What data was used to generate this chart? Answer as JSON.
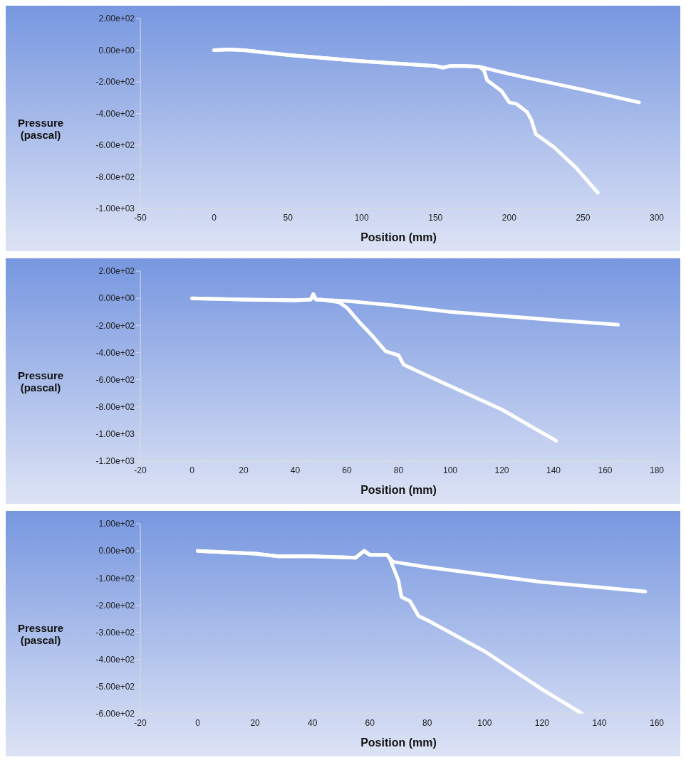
{
  "chart_data": [
    {
      "type": "line",
      "xlabel": "Position (mm)",
      "ylabel": "Pressure (pascal)",
      "xlim": [
        -50,
        300
      ],
      "xticks": [
        -50,
        0,
        50,
        100,
        150,
        200,
        250,
        300
      ],
      "ylim": [
        -1000,
        200
      ],
      "yticks": [
        {
          "value": 200,
          "label": "2.00e+02"
        },
        {
          "value": 0,
          "label": "0.00e+00"
        },
        {
          "value": -200,
          "label": "-2.00e+02"
        },
        {
          "value": -400,
          "label": "-4.00e+02"
        },
        {
          "value": -600,
          "label": "-6.00e+02"
        },
        {
          "value": -800,
          "label": "-8.00e+02"
        },
        {
          "value": -1000,
          "label": "-1.00e+03"
        }
      ],
      "grid": false,
      "legend": false,
      "marker": "none",
      "line_style": "solid",
      "series": [
        {
          "color": "#ffffff",
          "x": [
            0,
            10,
            20,
            50,
            100,
            150,
            155,
            160,
            170,
            180,
            200,
            210,
            250,
            288
          ],
          "values": [
            0,
            5,
            0,
            -30,
            -70,
            -100,
            -110,
            -100,
            -100,
            -105,
            -150,
            -170,
            -250,
            -330
          ]
        },
        {
          "color": "#ffffff",
          "x": [
            0,
            10,
            20,
            50,
            100,
            150,
            155,
            160,
            170,
            180,
            183,
            185,
            195,
            200,
            205,
            212,
            215,
            218,
            230,
            245,
            260
          ],
          "values": [
            0,
            5,
            0,
            -30,
            -70,
            -100,
            -110,
            -100,
            -100,
            -105,
            -130,
            -190,
            -260,
            -330,
            -340,
            -390,
            -440,
            -530,
            -610,
            -740,
            -900
          ]
        }
      ]
    },
    {
      "type": "line",
      "xlabel": "Position (mm)",
      "ylabel": "Pressure (pascal)",
      "xlim": [
        -20,
        180
      ],
      "xticks": [
        -20,
        0,
        20,
        40,
        60,
        80,
        100,
        120,
        140,
        160,
        180
      ],
      "ylim": [
        -1200,
        200
      ],
      "yticks": [
        {
          "value": 200,
          "label": "2.00e+02"
        },
        {
          "value": 0,
          "label": "0.00e+00"
        },
        {
          "value": -200,
          "label": "-2.00e+02"
        },
        {
          "value": -400,
          "label": "-4.00e+02"
        },
        {
          "value": -600,
          "label": "-6.00e+02"
        },
        {
          "value": -800,
          "label": "-8.00e+02"
        },
        {
          "value": -1000,
          "label": "-1.00e+03"
        },
        {
          "value": -1200,
          "label": "-1.20e+03"
        }
      ],
      "grid": false,
      "legend": false,
      "marker": "none",
      "line_style": "solid",
      "series": [
        {
          "color": "#ffffff",
          "x": [
            0,
            20,
            40,
            46,
            47,
            48,
            60,
            77,
            100,
            140,
            165
          ],
          "values": [
            0,
            -10,
            -15,
            -10,
            30,
            -10,
            -20,
            -50,
            -100,
            -160,
            -195
          ]
        },
        {
          "color": "#ffffff",
          "x": [
            0,
            20,
            40,
            46,
            47,
            48,
            50,
            57,
            60,
            65,
            70,
            75,
            80,
            82,
            90,
            120,
            141
          ],
          "values": [
            0,
            -10,
            -15,
            -10,
            30,
            -10,
            -10,
            -30,
            -70,
            -180,
            -280,
            -390,
            -420,
            -490,
            -560,
            -820,
            -1050
          ]
        }
      ]
    },
    {
      "type": "line",
      "xlabel": "Position (mm)",
      "ylabel": "Pressure (pascal)",
      "xlim": [
        -20,
        160
      ],
      "xticks": [
        -20,
        0,
        20,
        40,
        60,
        80,
        100,
        120,
        140,
        160
      ],
      "ylim": [
        -600,
        100
      ],
      "yticks": [
        {
          "value": 100,
          "label": "1.00e+02"
        },
        {
          "value": 0,
          "label": "0.00e+00"
        },
        {
          "value": -100,
          "label": "-1.00e+02"
        },
        {
          "value": -200,
          "label": "-2.00e+02"
        },
        {
          "value": -300,
          "label": "-3.00e+02"
        },
        {
          "value": -400,
          "label": "-4.00e+02"
        },
        {
          "value": -500,
          "label": "-5.00e+02"
        },
        {
          "value": -600,
          "label": "-6.00e+02"
        }
      ],
      "grid": false,
      "legend": false,
      "marker": "none",
      "line_style": "solid",
      "series": [
        {
          "color": "#ffffff",
          "x": [
            0,
            20,
            28,
            40,
            55,
            58,
            60,
            66,
            68,
            80,
            120,
            156
          ],
          "values": [
            0,
            -10,
            -20,
            -20,
            -25,
            0,
            -15,
            -15,
            -40,
            -60,
            -115,
            -150
          ]
        },
        {
          "color": "#ffffff",
          "x": [
            0,
            20,
            28,
            40,
            55,
            58,
            60,
            66,
            67,
            70,
            71,
            74,
            77,
            80,
            100,
            120,
            134
          ],
          "values": [
            0,
            -10,
            -20,
            -20,
            -25,
            0,
            -15,
            -15,
            -30,
            -110,
            -170,
            -185,
            -240,
            -255,
            -370,
            -510,
            -600
          ]
        }
      ]
    }
  ]
}
